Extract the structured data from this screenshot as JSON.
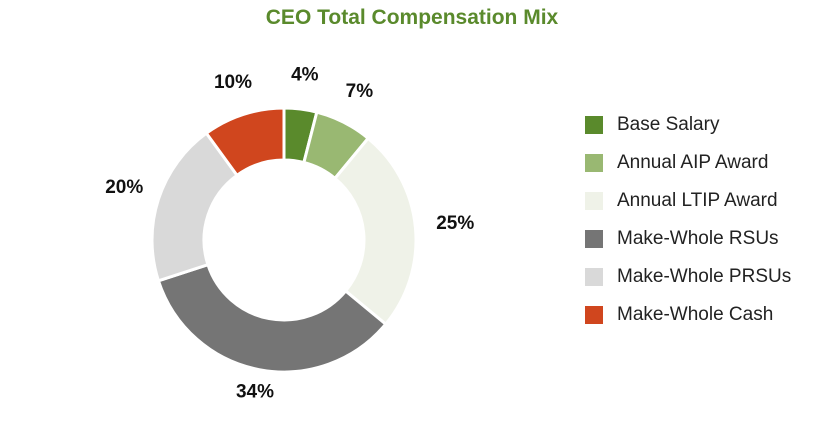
{
  "chart_data": {
    "type": "pie",
    "donut": true,
    "title": "CEO Total Compensation Mix",
    "categories": [
      "Base Salary",
      "Annual AIP Award",
      "Annual LTIP Award",
      "Make-Whole RSUs",
      "Make-Whole PRSUs",
      "Make-Whole Cash"
    ],
    "values": [
      4,
      7,
      25,
      34,
      20,
      10
    ],
    "labels": [
      "4%",
      "7%",
      "25%",
      "34%",
      "20%",
      "10%"
    ],
    "colors": [
      "#5a8a2c",
      "#99b872",
      "#eff2e8",
      "#757575",
      "#d9d9d9",
      "#d0461e"
    ],
    "legend_position": "right"
  }
}
